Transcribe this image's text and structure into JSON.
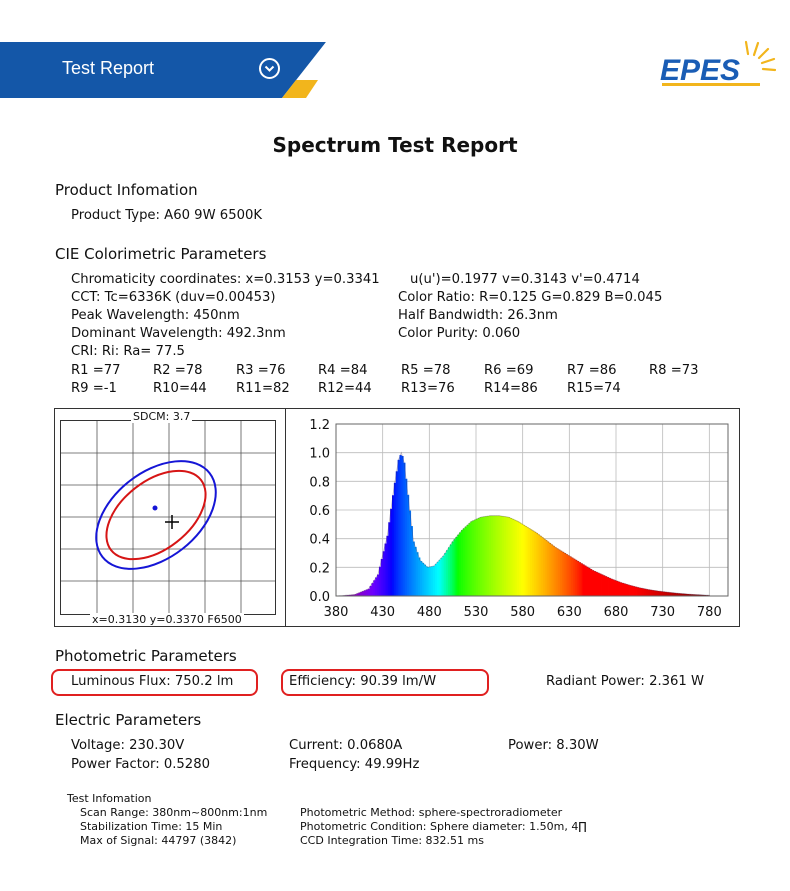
{
  "header": {
    "title": "Test Report",
    "logo_text": "EPES",
    "colors": {
      "banner": "#1457a8",
      "accent": "#f2b51c",
      "logo": "#1a5db5"
    }
  },
  "report": {
    "title": "Spectrum Test Report",
    "product": {
      "heading": "Product Infomation",
      "type": "Product Type: A60 9W 6500K"
    },
    "cie": {
      "heading": "CIE Colorimetric Parameters",
      "chroma": "Chromaticity coordinates: x=0.3153 y=0.3341",
      "uv": "u(u')=0.1977 v=0.3143 v'=0.4714",
      "cct": "CCT: Tc=6336K (duv=0.00453)",
      "color_ratio": "Color Ratio: R=0.125  G=0.829  B=0.045",
      "peak": "Peak Wavelength: 450nm",
      "half_bw": "Half Bandwidth: 26.3nm",
      "dominant": "Dominant Wavelength: 492.3nm",
      "purity": "Color Purity: 0.060",
      "cri": "CRI: Ri: Ra= 77.5",
      "r_row1": [
        "R1 =77",
        "R2 =78",
        "R3 =76",
        "R4 =84",
        "R5 =78",
        "R6 =69",
        "R7 =86",
        "R8 =73"
      ],
      "r_row2": [
        "R9 =-1",
        "R10=44",
        "R11=82",
        "R12=44",
        "R13=76",
        "R14=86",
        "R15=74"
      ]
    },
    "cie_diagram": {
      "sdcm": "SDCM:  3.7",
      "footer": "x=0.3130 y=0.3370 F6500"
    },
    "photometric": {
      "heading": "Photometric Parameters",
      "flux": "Luminous Flux: 750.2 lm",
      "efficiency": "Efficiency: 90.39 lm/W",
      "radiant": "Radiant Power: 2.361 W"
    },
    "electric": {
      "heading": "Electric Parameters",
      "voltage": "Voltage: 230.30V",
      "current": "Current: 0.0680A",
      "power": "Power: 8.30W",
      "pf": "Power Factor: 0.5280",
      "freq": "Frequency: 49.99Hz"
    },
    "test": {
      "heading": "Test Infomation",
      "scan": "Scan Range: 380nm~800nm:1nm",
      "stab": "Stabilization Time: 15 Min",
      "max": "Max of Signal: 44797 (3842)",
      "method": "Photometric Method: sphere-spectroradiometer",
      "condition": "Photometric Condition: Sphere diameter: 1.50m, 4∏",
      "ccd": "CCD Integration Time: 832.51 ms"
    }
  },
  "chart_data": {
    "type": "area",
    "x_ticks": [
      "380",
      "430",
      "480",
      "530",
      "580",
      "630",
      "680",
      "730",
      "780"
    ],
    "y_ticks": [
      "0.0",
      "0.2",
      "0.4",
      "0.6",
      "0.8",
      "1.0",
      "1.2"
    ],
    "xlim": [
      380,
      800
    ],
    "ylim": [
      0,
      1.2
    ],
    "grid": true,
    "x": [
      380,
      400,
      415,
      425,
      435,
      442,
      447,
      450,
      453,
      458,
      463,
      470,
      478,
      485,
      495,
      505,
      515,
      525,
      535,
      545,
      555,
      565,
      575,
      585,
      595,
      605,
      615,
      625,
      635,
      645,
      655,
      665,
      675,
      685,
      695,
      705,
      715,
      725,
      735,
      745,
      760,
      780
    ],
    "y": [
      0.0,
      0.01,
      0.05,
      0.15,
      0.42,
      0.75,
      0.95,
      1.0,
      0.93,
      0.65,
      0.38,
      0.25,
      0.2,
      0.21,
      0.28,
      0.38,
      0.46,
      0.52,
      0.55,
      0.56,
      0.56,
      0.55,
      0.52,
      0.48,
      0.44,
      0.39,
      0.34,
      0.3,
      0.26,
      0.22,
      0.18,
      0.15,
      0.12,
      0.095,
      0.075,
      0.058,
      0.045,
      0.035,
      0.027,
      0.02,
      0.012,
      0.005
    ]
  }
}
